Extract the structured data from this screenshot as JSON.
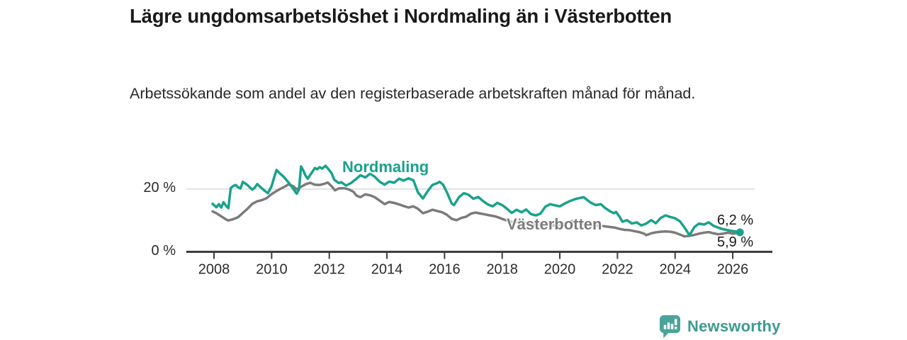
{
  "page": {
    "title": "Lägre ungdomsarbetslöshet i Nordmaling än i Västerbotten",
    "subtitle": "Arbetssökande som andel av den registerbaserade arbetskraften månad för månad."
  },
  "footer": {
    "brand": "Newsworthy",
    "logo_icon": "newsworthy-speech-bubble-bar-chart-icon"
  },
  "colors": {
    "accent_teal": "#18a28c",
    "series_gray": "#7b7b7b",
    "grid_line": "#d9d9d9",
    "axis_line": "#3d3d3d",
    "text_dark": "#1a1a1a",
    "logo_icon_teal": "#4aa49c",
    "logo_text_teal": "#3c9b91"
  },
  "chart_data": {
    "type": "line",
    "title": "Lägre ungdomsarbetslöshet i Nordmaling än i Västerbotten",
    "subtitle": "Arbetssökande som andel av den registerbaserade arbetskraften månad för månad.",
    "unit": "%",
    "x_range": [
      2007.8,
      2026.5
    ],
    "y_range": [
      0,
      30
    ],
    "grid": "horizontal-at-20-only",
    "legend_position": "inline-series-labels",
    "x_ticks": [
      2008,
      2010,
      2012,
      2014,
      2016,
      2018,
      2020,
      2022,
      2024,
      2026
    ],
    "y_ticks": [
      {
        "value": 20,
        "label": "20 %"
      },
      {
        "value": 0,
        "label": "0 %"
      }
    ],
    "series": [
      {
        "name": "Nordmaling",
        "color": "#18a28c",
        "end_label": "6,2 %",
        "end_value": 6.2,
        "end_dot": true,
        "points": [
          [
            2007.95,
            15.3
          ],
          [
            2008.08,
            14.2
          ],
          [
            2008.17,
            15.2
          ],
          [
            2008.25,
            14.1
          ],
          [
            2008.33,
            15.8
          ],
          [
            2008.42,
            14.6
          ],
          [
            2008.5,
            13.9
          ],
          [
            2008.58,
            20.3
          ],
          [
            2008.67,
            21.0
          ],
          [
            2008.75,
            21.3
          ],
          [
            2008.83,
            20.6
          ],
          [
            2008.92,
            20.2
          ],
          [
            2009.0,
            22.3
          ],
          [
            2009.17,
            21.2
          ],
          [
            2009.33,
            19.8
          ],
          [
            2009.42,
            20.5
          ],
          [
            2009.5,
            21.6
          ],
          [
            2009.58,
            20.9
          ],
          [
            2009.75,
            19.5
          ],
          [
            2009.87,
            18.7
          ],
          [
            2010.0,
            20.9
          ],
          [
            2010.08,
            23.5
          ],
          [
            2010.17,
            26.1
          ],
          [
            2010.25,
            25.3
          ],
          [
            2010.42,
            23.9
          ],
          [
            2010.58,
            22.2
          ],
          [
            2010.75,
            20.1
          ],
          [
            2010.87,
            18.5
          ],
          [
            2010.95,
            19.9
          ],
          [
            2011.02,
            27.2
          ],
          [
            2011.1,
            25.9
          ],
          [
            2011.17,
            24.4
          ],
          [
            2011.25,
            23.3
          ],
          [
            2011.42,
            25.6
          ],
          [
            2011.5,
            26.7
          ],
          [
            2011.58,
            26.3
          ],
          [
            2011.67,
            27.0
          ],
          [
            2011.75,
            26.5
          ],
          [
            2011.87,
            27.4
          ],
          [
            2011.95,
            26.6
          ],
          [
            2012.08,
            25.1
          ],
          [
            2012.17,
            23.0
          ],
          [
            2012.33,
            21.9
          ],
          [
            2012.42,
            22.2
          ],
          [
            2012.58,
            21.1
          ],
          [
            2012.75,
            21.9
          ],
          [
            2012.92,
            23.1
          ],
          [
            2013.08,
            24.4
          ],
          [
            2013.25,
            23.7
          ],
          [
            2013.42,
            24.9
          ],
          [
            2013.58,
            23.9
          ],
          [
            2013.75,
            22.3
          ],
          [
            2013.92,
            21.4
          ],
          [
            2014.08,
            22.4
          ],
          [
            2014.25,
            22.0
          ],
          [
            2014.42,
            23.3
          ],
          [
            2014.58,
            22.7
          ],
          [
            2014.75,
            23.4
          ],
          [
            2014.92,
            22.8
          ],
          [
            2015.08,
            18.9
          ],
          [
            2015.25,
            17.0
          ],
          [
            2015.42,
            19.4
          ],
          [
            2015.58,
            21.3
          ],
          [
            2015.75,
            21.9
          ],
          [
            2015.83,
            22.3
          ],
          [
            2015.95,
            21.4
          ],
          [
            2016.08,
            19.0
          ],
          [
            2016.25,
            15.4
          ],
          [
            2016.33,
            14.9
          ],
          [
            2016.5,
            17.4
          ],
          [
            2016.67,
            18.7
          ],
          [
            2016.83,
            18.2
          ],
          [
            2017.0,
            16.9
          ],
          [
            2017.17,
            17.5
          ],
          [
            2017.33,
            16.2
          ],
          [
            2017.5,
            15.1
          ],
          [
            2017.67,
            14.5
          ],
          [
            2017.83,
            15.6
          ],
          [
            2018.0,
            14.9
          ],
          [
            2018.17,
            13.7
          ],
          [
            2018.33,
            12.4
          ],
          [
            2018.5,
            13.4
          ],
          [
            2018.67,
            12.6
          ],
          [
            2018.83,
            13.5
          ],
          [
            2019.0,
            12.0
          ],
          [
            2019.17,
            11.6
          ],
          [
            2019.33,
            12.2
          ],
          [
            2019.5,
            14.4
          ],
          [
            2019.67,
            15.2
          ],
          [
            2019.83,
            14.8
          ],
          [
            2020.0,
            14.5
          ],
          [
            2020.17,
            15.4
          ],
          [
            2020.33,
            16.1
          ],
          [
            2020.5,
            16.7
          ],
          [
            2020.67,
            17.1
          ],
          [
            2020.83,
            17.4
          ],
          [
            2020.95,
            16.5
          ],
          [
            2021.08,
            15.6
          ],
          [
            2021.25,
            14.9
          ],
          [
            2021.42,
            15.2
          ],
          [
            2021.58,
            13.9
          ],
          [
            2021.75,
            12.9
          ],
          [
            2021.87,
            12.3
          ],
          [
            2021.95,
            12.7
          ],
          [
            2022.08,
            11.1
          ],
          [
            2022.17,
            9.6
          ],
          [
            2022.33,
            10.1
          ],
          [
            2022.5,
            9.0
          ],
          [
            2022.67,
            9.4
          ],
          [
            2022.83,
            8.4
          ],
          [
            2023.0,
            9.0
          ],
          [
            2023.17,
            10.1
          ],
          [
            2023.33,
            9.1
          ],
          [
            2023.5,
            10.8
          ],
          [
            2023.67,
            11.6
          ],
          [
            2023.83,
            11.1
          ],
          [
            2024.0,
            10.7
          ],
          [
            2024.17,
            9.7
          ],
          [
            2024.33,
            7.7
          ],
          [
            2024.5,
            5.3
          ],
          [
            2024.67,
            7.9
          ],
          [
            2024.83,
            9.0
          ],
          [
            2025.0,
            8.7
          ],
          [
            2025.17,
            9.4
          ],
          [
            2025.33,
            8.3
          ],
          [
            2025.5,
            7.7
          ],
          [
            2025.67,
            7.2
          ],
          [
            2025.83,
            6.9
          ],
          [
            2026.0,
            6.6
          ],
          [
            2026.17,
            6.4
          ],
          [
            2026.25,
            6.2
          ]
        ]
      },
      {
        "name": "Västerbotten",
        "color": "#7b7b7b",
        "end_label": "5,9 %",
        "end_value": 5.9,
        "end_dot": false,
        "points": [
          [
            2007.95,
            12.9
          ],
          [
            2008.08,
            12.3
          ],
          [
            2008.25,
            11.3
          ],
          [
            2008.42,
            10.3
          ],
          [
            2008.5,
            10.0
          ],
          [
            2008.67,
            10.4
          ],
          [
            2008.83,
            11.0
          ],
          [
            2009.0,
            12.4
          ],
          [
            2009.17,
            13.8
          ],
          [
            2009.33,
            15.3
          ],
          [
            2009.5,
            16.1
          ],
          [
            2009.67,
            16.5
          ],
          [
            2009.83,
            17.1
          ],
          [
            2010.0,
            18.4
          ],
          [
            2010.17,
            19.4
          ],
          [
            2010.33,
            20.2
          ],
          [
            2010.5,
            21.0
          ],
          [
            2010.58,
            21.5
          ],
          [
            2010.75,
            20.9
          ],
          [
            2010.87,
            19.9
          ],
          [
            2011.0,
            20.6
          ],
          [
            2011.17,
            21.5
          ],
          [
            2011.33,
            22.0
          ],
          [
            2011.5,
            21.4
          ],
          [
            2011.67,
            21.3
          ],
          [
            2011.83,
            21.7
          ],
          [
            2011.95,
            22.1
          ],
          [
            2012.08,
            20.9
          ],
          [
            2012.2,
            19.6
          ],
          [
            2012.33,
            20.2
          ],
          [
            2012.5,
            20.3
          ],
          [
            2012.67,
            19.9
          ],
          [
            2012.83,
            19.2
          ],
          [
            2012.95,
            17.9
          ],
          [
            2013.08,
            17.4
          ],
          [
            2013.25,
            18.3
          ],
          [
            2013.42,
            18.0
          ],
          [
            2013.58,
            17.4
          ],
          [
            2013.75,
            16.3
          ],
          [
            2013.92,
            15.2
          ],
          [
            2014.08,
            15.9
          ],
          [
            2014.25,
            15.6
          ],
          [
            2014.42,
            15.1
          ],
          [
            2014.58,
            14.6
          ],
          [
            2014.75,
            14.1
          ],
          [
            2014.92,
            14.5
          ],
          [
            2015.08,
            13.7
          ],
          [
            2015.25,
            12.3
          ],
          [
            2015.42,
            12.8
          ],
          [
            2015.58,
            13.4
          ],
          [
            2015.75,
            13.0
          ],
          [
            2015.92,
            12.6
          ],
          [
            2016.08,
            11.8
          ],
          [
            2016.25,
            10.5
          ],
          [
            2016.42,
            10.1
          ],
          [
            2016.58,
            10.8
          ],
          [
            2016.75,
            11.2
          ],
          [
            2016.92,
            12.2
          ],
          [
            2017.08,
            12.5
          ],
          [
            2017.25,
            12.2
          ],
          [
            2017.42,
            11.9
          ],
          [
            2017.58,
            11.6
          ],
          [
            2017.75,
            11.3
          ],
          [
            2017.92,
            10.8
          ],
          [
            2018.08,
            10.2
          ],
          [
            2018.25,
            9.7
          ],
          [
            2018.42,
            9.3
          ],
          [
            2018.58,
            9.6
          ],
          [
            2018.75,
            9.3
          ],
          [
            2018.92,
            9.0
          ],
          [
            2019.08,
            8.7
          ],
          [
            2019.25,
            8.5
          ],
          [
            2019.42,
            8.9
          ],
          [
            2019.58,
            8.6
          ],
          [
            2019.75,
            8.4
          ],
          [
            2019.92,
            8.5
          ],
          [
            2020.08,
            8.8
          ],
          [
            2020.25,
            9.3
          ],
          [
            2020.42,
            9.8
          ],
          [
            2020.58,
            9.5
          ],
          [
            2020.75,
            9.2
          ],
          [
            2020.92,
            8.9
          ],
          [
            2021.08,
            8.6
          ],
          [
            2021.25,
            8.4
          ],
          [
            2021.42,
            8.3
          ],
          [
            2021.58,
            8.1
          ],
          [
            2021.75,
            7.9
          ],
          [
            2021.92,
            7.7
          ],
          [
            2022.08,
            7.3
          ],
          [
            2022.25,
            7.0
          ],
          [
            2022.42,
            6.9
          ],
          [
            2022.58,
            6.6
          ],
          [
            2022.75,
            6.3
          ],
          [
            2022.92,
            5.8
          ],
          [
            2023.0,
            5.3
          ],
          [
            2023.17,
            5.9
          ],
          [
            2023.33,
            6.2
          ],
          [
            2023.5,
            6.4
          ],
          [
            2023.67,
            6.5
          ],
          [
            2023.83,
            6.4
          ],
          [
            2024.0,
            6.1
          ],
          [
            2024.17,
            5.5
          ],
          [
            2024.33,
            4.9
          ],
          [
            2024.5,
            5.1
          ],
          [
            2024.67,
            5.4
          ],
          [
            2024.83,
            5.8
          ],
          [
            2025.0,
            6.1
          ],
          [
            2025.17,
            6.3
          ],
          [
            2025.33,
            5.9
          ],
          [
            2025.5,
            5.6
          ],
          [
            2025.67,
            5.8
          ],
          [
            2025.83,
            6.1
          ],
          [
            2026.0,
            5.8
          ],
          [
            2026.17,
            5.9
          ]
        ]
      }
    ]
  }
}
